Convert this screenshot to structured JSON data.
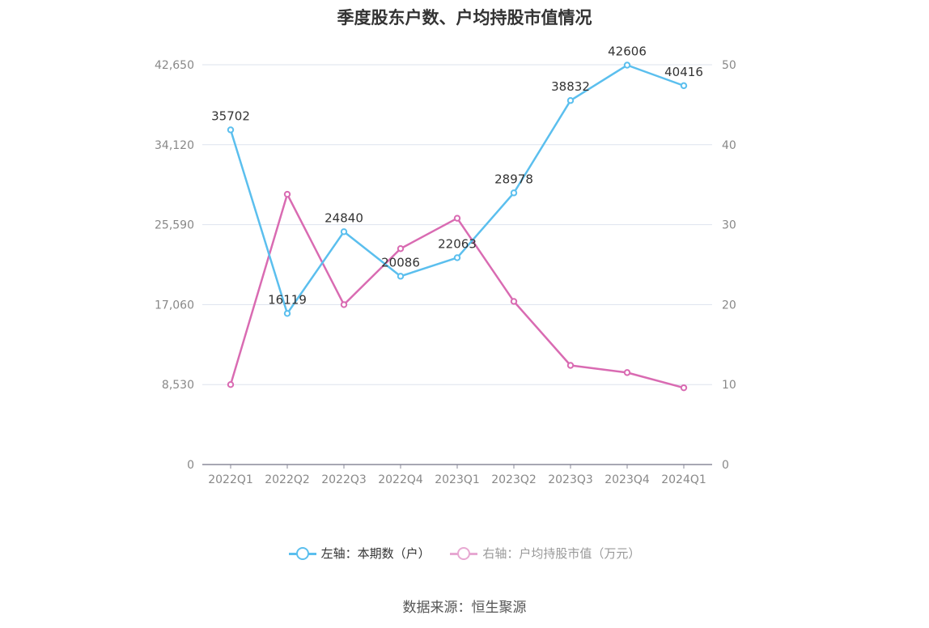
{
  "title": "季度股东户数、户均持股市值情况",
  "source": "数据来源：恒生聚源",
  "colors": {
    "left_series": "#5bbfee",
    "right_series": "#d96bb2",
    "right_series_legend": "#e7a8d2",
    "grid": "#dde3ee",
    "axis": "#8a8a9a"
  },
  "legend": {
    "left_label": "左轴：本期数（户）",
    "right_label": "右轴：户均持股市值（万元）"
  },
  "chart_data": {
    "type": "line",
    "categories": [
      "2022Q1",
      "2022Q2",
      "2022Q3",
      "2022Q4",
      "2023Q1",
      "2023Q2",
      "2023Q3",
      "2023Q4",
      "2024Q1"
    ],
    "left_axis": {
      "ticks": [
        "0",
        "8,530",
        "17,060",
        "25,590",
        "34,120",
        "42,650"
      ],
      "tick_values": [
        0,
        8530,
        17060,
        25590,
        34120,
        42650
      ],
      "ylim": [
        0,
        42650
      ]
    },
    "right_axis": {
      "ticks": [
        "0",
        "10",
        "20",
        "30",
        "40",
        "50"
      ],
      "tick_values": [
        0,
        10,
        20,
        30,
        40,
        50
      ],
      "ylim": [
        0,
        50
      ]
    },
    "series": [
      {
        "name": "左轴：本期数（户）",
        "axis": "left",
        "values": [
          35702,
          16119,
          24840,
          20086,
          22063,
          28978,
          38832,
          42606,
          40416
        ],
        "labels": [
          "35702",
          "16119",
          "24840",
          "20086",
          "22063",
          "28978",
          "38832",
          "42606",
          "40416"
        ]
      },
      {
        "name": "右轴：户均持股市值（万元）",
        "axis": "right",
        "values": [
          10.0,
          33.8,
          20.0,
          27.0,
          30.8,
          20.4,
          12.4,
          11.5,
          9.6
        ]
      }
    ],
    "grid": true,
    "legend_position": "bottom"
  }
}
